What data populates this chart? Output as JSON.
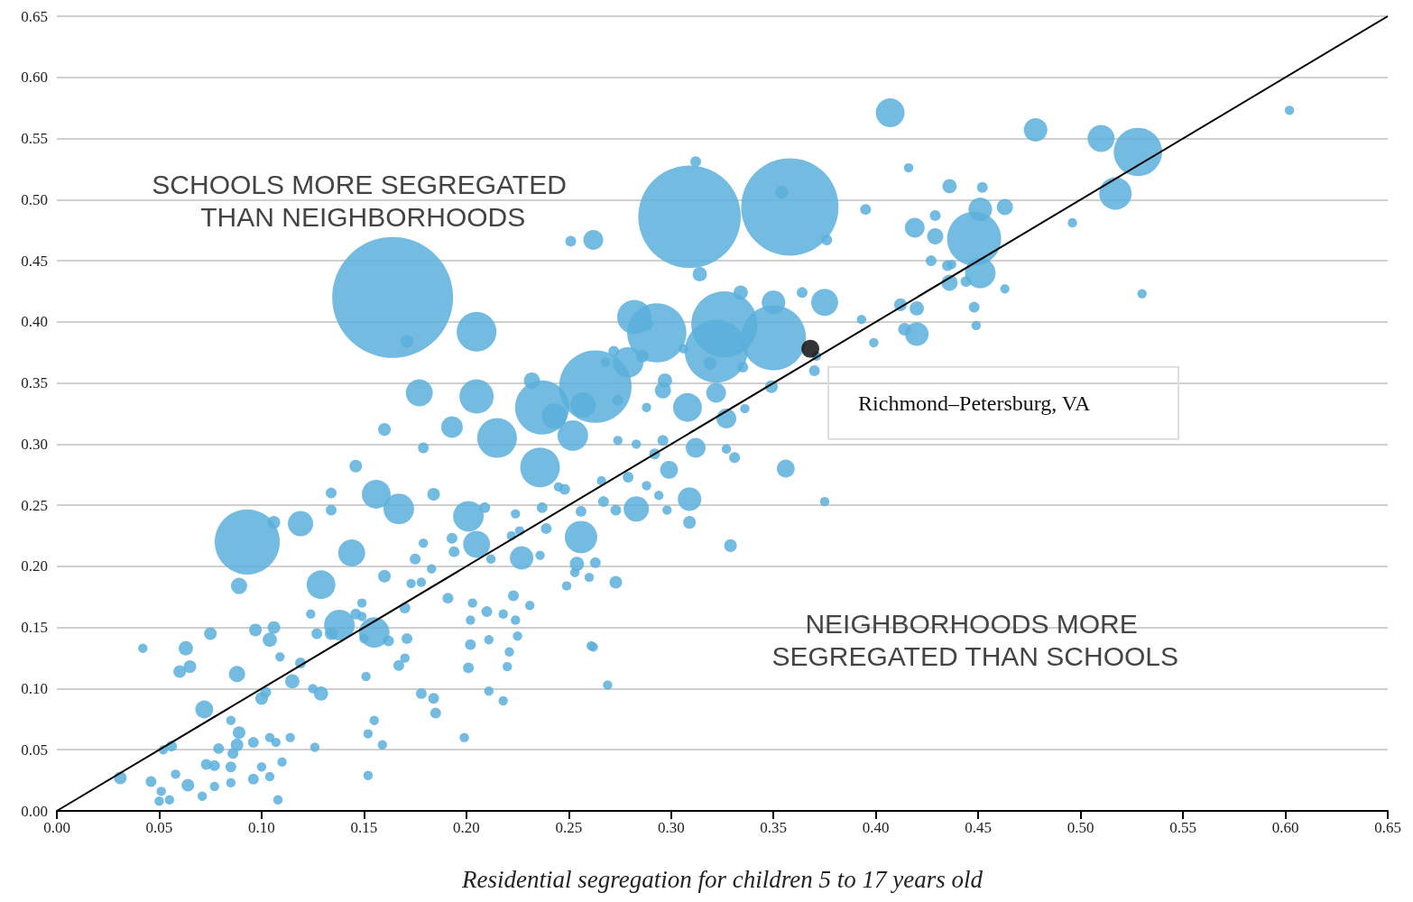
{
  "chart_data": {
    "type": "bubble",
    "xlabel": "Residential segregation for children 5 to 17 years old",
    "xlim": [
      0,
      0.65
    ],
    "ylim": [
      0,
      0.65
    ],
    "xticks": [
      {
        "value": 0,
        "label": "0.00"
      },
      {
        "value": 0.05,
        "label": "0.05"
      },
      {
        "value": 0.1,
        "label": "0.10"
      },
      {
        "value": 0.15,
        "label": "0.15"
      },
      {
        "value": 0.2,
        "label": "0.20"
      },
      {
        "value": 0.25,
        "label": "0.25"
      },
      {
        "value": 0.3,
        "label": "0.30"
      },
      {
        "value": 0.35,
        "label": "0.35"
      },
      {
        "value": 0.4,
        "label": "0.40"
      },
      {
        "value": 0.45,
        "label": "0.45"
      },
      {
        "value": 0.5,
        "label": "0.50"
      },
      {
        "value": 0.55,
        "label": "0.55"
      },
      {
        "value": 0.6,
        "label": "0.60"
      },
      {
        "value": 0.65,
        "label": "0.65"
      }
    ],
    "yticks": [
      {
        "value": 0,
        "label": "0.00"
      },
      {
        "value": 0.05,
        "label": "0.05"
      },
      {
        "value": 0.1,
        "label": "0.10"
      },
      {
        "value": 0.15,
        "label": "0.15"
      },
      {
        "value": 0.2,
        "label": "0.20"
      },
      {
        "value": 0.25,
        "label": "0.25"
      },
      {
        "value": 0.3,
        "label": "0.30"
      },
      {
        "value": 0.35,
        "label": "0.35"
      },
      {
        "value": 0.4,
        "label": "0.40"
      },
      {
        "value": 0.45,
        "label": "0.45"
      },
      {
        "value": 0.5,
        "label": "0.50"
      },
      {
        "value": 0.55,
        "label": "0.55"
      },
      {
        "value": 0.6,
        "label": "0.60"
      },
      {
        "value": 0.65,
        "label": "0.65"
      }
    ],
    "grid": "y",
    "series": [
      {
        "type": "line",
        "color": "#000000",
        "x": [
          0,
          0.65
        ],
        "values": [
          0,
          0.65
        ]
      },
      {
        "type": "bubble",
        "color": "#5aafdb",
        "x": [
          0.164,
          0.309,
          0.358,
          0.093,
          0.263,
          0.237,
          0.35,
          0.326,
          0.322,
          0.293,
          0.448,
          0.528,
          0.205,
          0.517,
          0.51,
          0.478,
          0.407,
          0.451,
          0.282,
          0.215,
          0.205,
          0.177,
          0.193,
          0.236,
          0.252,
          0.243,
          0.279,
          0.308,
          0.257,
          0.256,
          0.201,
          0.205,
          0.167,
          0.156,
          0.144,
          0.129,
          0.138,
          0.155,
          0.227,
          0.283,
          0.309,
          0.312,
          0.299,
          0.327,
          0.322,
          0.375,
          0.35,
          0.419,
          0.463,
          0.42,
          0.429,
          0.436,
          0.356,
          0.314,
          0.262,
          0.251,
          0.171,
          0.119,
          0.106,
          0.089,
          0.075,
          0.063,
          0.072,
          0.088,
          0.115,
          0.129,
          0.097,
          0.104,
          0.106,
          0.134,
          0.16,
          0.16,
          0.146,
          0.134,
          0.134,
          0.184,
          0.179,
          0.031,
          0.042,
          0.06,
          0.065,
          0.056,
          0.052,
          0.046,
          0.051,
          0.05,
          0.055,
          0.058,
          0.064,
          0.071,
          0.073,
          0.077,
          0.077,
          0.079,
          0.085,
          0.089,
          0.088,
          0.086,
          0.085,
          0.085,
          0.096,
          0.104,
          0.107,
          0.096,
          0.1,
          0.104,
          0.108,
          0.11,
          0.114,
          0.1,
          0.102,
          0.109,
          0.119,
          0.125,
          0.126,
          0.124,
          0.127,
          0.146,
          0.149,
          0.149,
          0.15,
          0.151,
          0.152,
          0.155,
          0.159,
          0.152,
          0.162,
          0.167,
          0.17,
          0.171,
          0.17,
          0.173,
          0.175,
          0.179,
          0.178,
          0.183,
          0.178,
          0.184,
          0.185,
          0.191,
          0.193,
          0.194,
          0.199,
          0.201,
          0.202,
          0.202,
          0.203,
          0.209,
          0.21,
          0.211,
          0.211,
          0.212,
          0.218,
          0.218,
          0.22,
          0.221,
          0.223,
          0.225,
          0.224,
          0.222,
          0.224,
          0.226,
          0.231,
          0.236,
          0.239,
          0.237,
          0.245,
          0.248,
          0.249,
          0.253,
          0.254,
          0.256,
          0.26,
          0.261,
          0.262,
          0.263,
          0.266,
          0.267,
          0.269,
          0.273,
          0.273,
          0.274,
          0.279,
          0.283,
          0.288,
          0.288,
          0.292,
          0.294,
          0.296,
          0.298,
          0.309,
          0.327,
          0.331,
          0.329,
          0.336,
          0.349,
          0.37,
          0.371,
          0.375,
          0.376,
          0.364,
          0.395,
          0.393,
          0.399,
          0.412,
          0.414,
          0.416,
          0.42,
          0.427,
          0.429,
          0.435,
          0.437,
          0.436,
          0.444,
          0.448,
          0.449,
          0.451,
          0.452,
          0.463,
          0.496,
          0.334,
          0.335,
          0.319,
          0.306,
          0.288,
          0.286,
          0.272,
          0.274,
          0.268,
          0.297,
          0.296,
          0.232,
          0.53,
          0.602,
          0.312,
          0.354
        ],
        "values": [
          0.42,
          0.486,
          0.494,
          0.22,
          0.347,
          0.33,
          0.387,
          0.398,
          0.376,
          0.391,
          0.468,
          0.539,
          0.392,
          0.505,
          0.55,
          0.557,
          0.571,
          0.44,
          0.404,
          0.305,
          0.339,
          0.342,
          0.314,
          0.281,
          0.307,
          0.323,
          0.367,
          0.33,
          0.332,
          0.224,
          0.241,
          0.218,
          0.247,
          0.259,
          0.211,
          0.185,
          0.152,
          0.146,
          0.207,
          0.247,
          0.255,
          0.297,
          0.279,
          0.321,
          0.342,
          0.416,
          0.416,
          0.477,
          0.494,
          0.39,
          0.47,
          0.511,
          0.28,
          0.439,
          0.467,
          0.466,
          0.384,
          0.235,
          0.236,
          0.184,
          0.145,
          0.133,
          0.083,
          0.112,
          0.106,
          0.096,
          0.148,
          0.14,
          0.15,
          0.145,
          0.312,
          0.192,
          0.282,
          0.26,
          0.246,
          0.259,
          0.297,
          0.027,
          0.133,
          0.114,
          0.118,
          0.053,
          0.05,
          0.024,
          0.016,
          0.008,
          0.009,
          0.03,
          0.021,
          0.012,
          0.038,
          0.037,
          0.02,
          0.051,
          0.074,
          0.064,
          0.054,
          0.047,
          0.036,
          0.023,
          0.056,
          0.06,
          0.056,
          0.026,
          0.036,
          0.028,
          0.009,
          0.04,
          0.06,
          0.092,
          0.097,
          0.126,
          0.121,
          0.1,
          0.052,
          0.161,
          0.145,
          0.161,
          0.159,
          0.17,
          0.141,
          0.11,
          0.063,
          0.074,
          0.054,
          0.029,
          0.139,
          0.119,
          0.125,
          0.141,
          0.166,
          0.186,
          0.206,
          0.219,
          0.187,
          0.198,
          0.096,
          0.092,
          0.08,
          0.174,
          0.223,
          0.212,
          0.06,
          0.117,
          0.136,
          0.156,
          0.17,
          0.248,
          0.163,
          0.098,
          0.14,
          0.206,
          0.09,
          0.161,
          0.118,
          0.13,
          0.176,
          0.143,
          0.156,
          0.225,
          0.243,
          0.229,
          0.168,
          0.209,
          0.231,
          0.248,
          0.265,
          0.263,
          0.184,
          0.195,
          0.202,
          0.245,
          0.191,
          0.135,
          0.134,
          0.203,
          0.27,
          0.253,
          0.103,
          0.187,
          0.246,
          0.303,
          0.273,
          0.3,
          0.33,
          0.266,
          0.292,
          0.258,
          0.303,
          0.246,
          0.236,
          0.296,
          0.289,
          0.217,
          0.329,
          0.347,
          0.36,
          0.372,
          0.253,
          0.467,
          0.424,
          0.492,
          0.402,
          0.383,
          0.414,
          0.394,
          0.526,
          0.411,
          0.45,
          0.487,
          0.446,
          0.447,
          0.432,
          0.433,
          0.412,
          0.397,
          0.492,
          0.51,
          0.427,
          0.481,
          0.424,
          0.363,
          0.366,
          0.378,
          0.398,
          0.372,
          0.376,
          0.336,
          0.367,
          0.352,
          0.344,
          0.352,
          0.423,
          0.573,
          0.531,
          0.506
        ],
        "sizes": [
          1,
          0.72,
          0.65,
          0.29,
          0.36,
          0.2,
          0.29,
          0.3,
          0.27,
          0.24,
          0.2,
          0.16,
          0.108,
          0.072,
          0.05,
          0.038,
          0.057,
          0.064,
          0.08,
          0.108,
          0.08,
          0.05,
          0.032,
          0.108,
          0.064,
          0.044,
          0.064,
          0.057,
          0.044,
          0.072,
          0.064,
          0.05,
          0.064,
          0.057,
          0.05,
          0.057,
          0.064,
          0.064,
          0.038,
          0.044,
          0.038,
          0.027,
          0.022,
          0.027,
          0.027,
          0.05,
          0.038,
          0.027,
          0.018,
          0.038,
          0.018,
          0.014,
          0.022,
          0.014,
          0.027,
          0.008,
          0.011,
          0.044,
          0.011,
          0.018,
          0.011,
          0.014,
          0.022,
          0.018,
          0.014,
          0.014,
          0.011,
          0.014,
          0.011,
          0.011,
          0.011,
          0.011,
          0.011,
          0.008,
          0.008,
          0.011,
          0.008,
          0.011,
          0.006,
          0.011,
          0.011,
          0.008,
          0.006,
          0.008,
          0.006,
          0.006,
          0.006,
          0.006,
          0.011,
          0.006,
          0.008,
          0.008,
          0.006,
          0.008,
          0.006,
          0.011,
          0.011,
          0.008,
          0.008,
          0.006,
          0.008,
          0.006,
          0.006,
          0.008,
          0.006,
          0.006,
          0.006,
          0.006,
          0.006,
          0.011,
          0.008,
          0.006,
          0.008,
          0.006,
          0.006,
          0.006,
          0.008,
          0.008,
          0.006,
          0.006,
          0.006,
          0.006,
          0.006,
          0.006,
          0.006,
          0.006,
          0.008,
          0.008,
          0.006,
          0.008,
          0.008,
          0.006,
          0.008,
          0.006,
          0.006,
          0.006,
          0.008,
          0.008,
          0.008,
          0.008,
          0.008,
          0.008,
          0.006,
          0.008,
          0.008,
          0.006,
          0.006,
          0.008,
          0.008,
          0.006,
          0.006,
          0.006,
          0.006,
          0.006,
          0.006,
          0.006,
          0.008,
          0.006,
          0.006,
          0.006,
          0.006,
          0.006,
          0.006,
          0.006,
          0.008,
          0.008,
          0.006,
          0.008,
          0.006,
          0.006,
          0.014,
          0.008,
          0.006,
          0.006,
          0.006,
          0.008,
          0.006,
          0.008,
          0.006,
          0.011,
          0.008,
          0.006,
          0.008,
          0.006,
          0.006,
          0.006,
          0.008,
          0.006,
          0.008,
          0.006,
          0.011,
          0.006,
          0.008,
          0.011,
          0.006,
          0.011,
          0.008,
          0.006,
          0.006,
          0.008,
          0.008,
          0.008,
          0.006,
          0.006,
          0.011,
          0.011,
          0.006,
          0.014,
          0.008,
          0.008,
          0.008,
          0.006,
          0.018,
          0.008,
          0.008,
          0.006,
          0.038,
          0.008,
          0.006,
          0.006,
          0.014,
          0.008,
          0.011,
          0.006,
          0.011,
          0.011,
          0.008,
          0.008,
          0.006,
          0.014,
          0.018,
          0.018,
          0.006,
          0.006,
          0.008,
          0.011
        ]
      },
      {
        "type": "bubble",
        "color": "#111111",
        "x": [
          0.368
        ],
        "values": [
          0.378
        ],
        "sizes": [
          0.022
        ]
      }
    ],
    "annotations": [
      "SCHOOLS MORE SEGREGATED THAN NEIGHBORHOODS",
      "NEIGHBORHOODS MORE SEGREGATED THAN SCHOOLS",
      {
        "text": "Richmond–Petersburg, VA",
        "x": 0.368,
        "y": 0.378
      }
    ]
  }
}
